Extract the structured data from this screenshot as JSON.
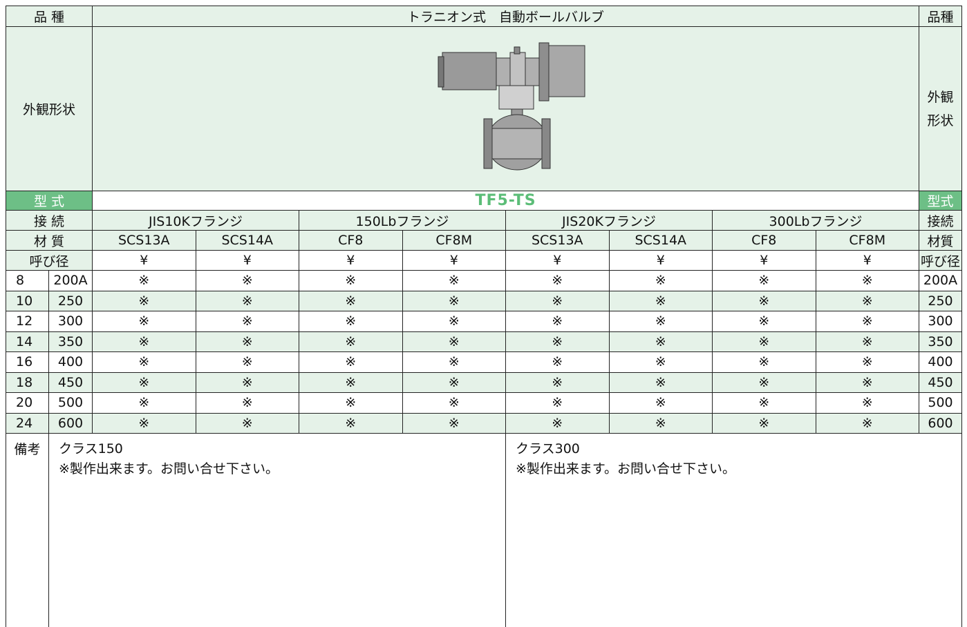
{
  "header": {
    "left": "品 種",
    "title": "トラニオン式　自動ボールバルブ",
    "right": "品種"
  },
  "appearance": {
    "left": "外観形状",
    "right": [
      "外観",
      "形状"
    ]
  },
  "model": {
    "left": "型 式",
    "value": "TF5-TS",
    "right": "型式"
  },
  "connection": {
    "left": "接 続",
    "groups": [
      "JIS10Kフランジ",
      "150Lbフランジ",
      "JIS20Kフランジ",
      "300Lbフランジ"
    ],
    "right": "接続"
  },
  "material": {
    "left": "材 質",
    "values": [
      "SCS13A",
      "SCS14A",
      "CF8",
      "CF8M",
      "SCS13A",
      "SCS14A",
      "CF8",
      "CF8M"
    ],
    "right": "材質"
  },
  "size_header": {
    "left": "呼び径",
    "prices": [
      "¥",
      "¥",
      "¥",
      "¥",
      "¥",
      "¥",
      "¥",
      "¥"
    ],
    "right": "呼び径"
  },
  "rows": [
    {
      "inch": "8",
      "size": "200A",
      "cells": [
        "※",
        "※",
        "※",
        "※",
        "※",
        "※",
        "※",
        "※"
      ],
      "right": "200A"
    },
    {
      "inch": "10",
      "size": "250",
      "cells": [
        "※",
        "※",
        "※",
        "※",
        "※",
        "※",
        "※",
        "※"
      ],
      "right": "250"
    },
    {
      "inch": "12",
      "size": "300",
      "cells": [
        "※",
        "※",
        "※",
        "※",
        "※",
        "※",
        "※",
        "※"
      ],
      "right": "300"
    },
    {
      "inch": "14",
      "size": "350",
      "cells": [
        "※",
        "※",
        "※",
        "※",
        "※",
        "※",
        "※",
        "※"
      ],
      "right": "350"
    },
    {
      "inch": "16",
      "size": "400",
      "cells": [
        "※",
        "※",
        "※",
        "※",
        "※",
        "※",
        "※",
        "※"
      ],
      "right": "400"
    },
    {
      "inch": "18",
      "size": "450",
      "cells": [
        "※",
        "※",
        "※",
        "※",
        "※",
        "※",
        "※",
        "※"
      ],
      "right": "450"
    },
    {
      "inch": "20",
      "size": "500",
      "cells": [
        "※",
        "※",
        "※",
        "※",
        "※",
        "※",
        "※",
        "※"
      ],
      "right": "500"
    },
    {
      "inch": "24",
      "size": "600",
      "cells": [
        "※",
        "※",
        "※",
        "※",
        "※",
        "※",
        "※",
        "※"
      ],
      "right": "600"
    }
  ],
  "remarks": {
    "label": "備考",
    "left": {
      "title": "クラス150",
      "note": "※製作出来ます。お問い合せ下さい。"
    },
    "right": {
      "title": "クラス300",
      "note": "※製作出来ます。お問い合せ下さい。"
    }
  }
}
